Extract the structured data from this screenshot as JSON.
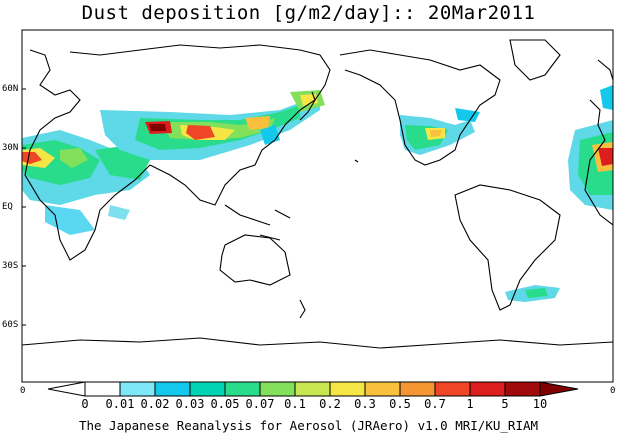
{
  "title": "Dust deposition [g/m2/day]:: 20Mar2011",
  "footer": "The Japanese Reanalysis for Aerosol (JRAero) v1.0 MRI/KU_RIAM",
  "lat_labels": [
    "60N",
    "30N",
    "EQ",
    "30S",
    "60S"
  ],
  "corner_left": "0",
  "corner_right": "0",
  "colorbar": {
    "labels": [
      "0",
      "0.01",
      "0.02",
      "0.03",
      "0.05",
      "0.07",
      "0.1",
      "0.2",
      "0.3",
      "0.5",
      "0.7",
      "1",
      "5",
      "10"
    ],
    "colors": [
      "#ffffff",
      "#ffffff",
      "#7ee8f8",
      "#14c8ec",
      "#00d2b4",
      "#28dc8c",
      "#82e05a",
      "#c8e650",
      "#f5e646",
      "#f8c03c",
      "#f59632",
      "#f04628",
      "#dc1e1e",
      "#a00a0a",
      "#800000"
    ]
  }
}
